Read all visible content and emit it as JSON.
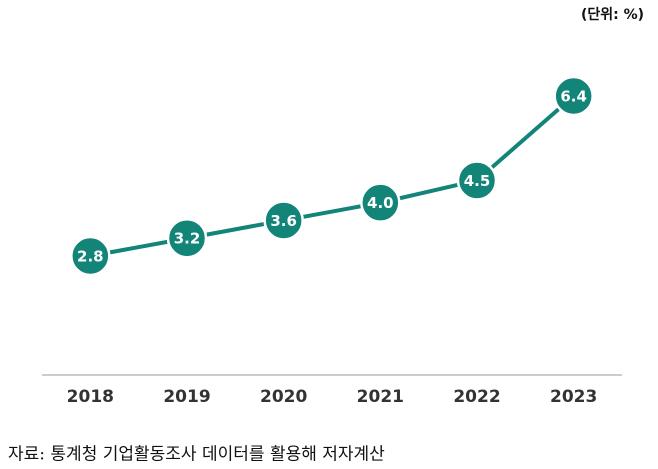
{
  "chart_data": {
    "type": "line",
    "unit_note": "(단위: %)",
    "source": "자료: 통계청 기업활동조사 데이터를 활용해 저자계산",
    "categories": [
      "2018",
      "2019",
      "2020",
      "2021",
      "2022",
      "2023"
    ],
    "values": [
      2.8,
      3.2,
      3.6,
      4.0,
      4.5,
      6.4
    ],
    "value_labels": [
      "2.8",
      "3.2",
      "3.6",
      "4.0",
      "4.5",
      "6.4"
    ],
    "color": "#128478"
  }
}
